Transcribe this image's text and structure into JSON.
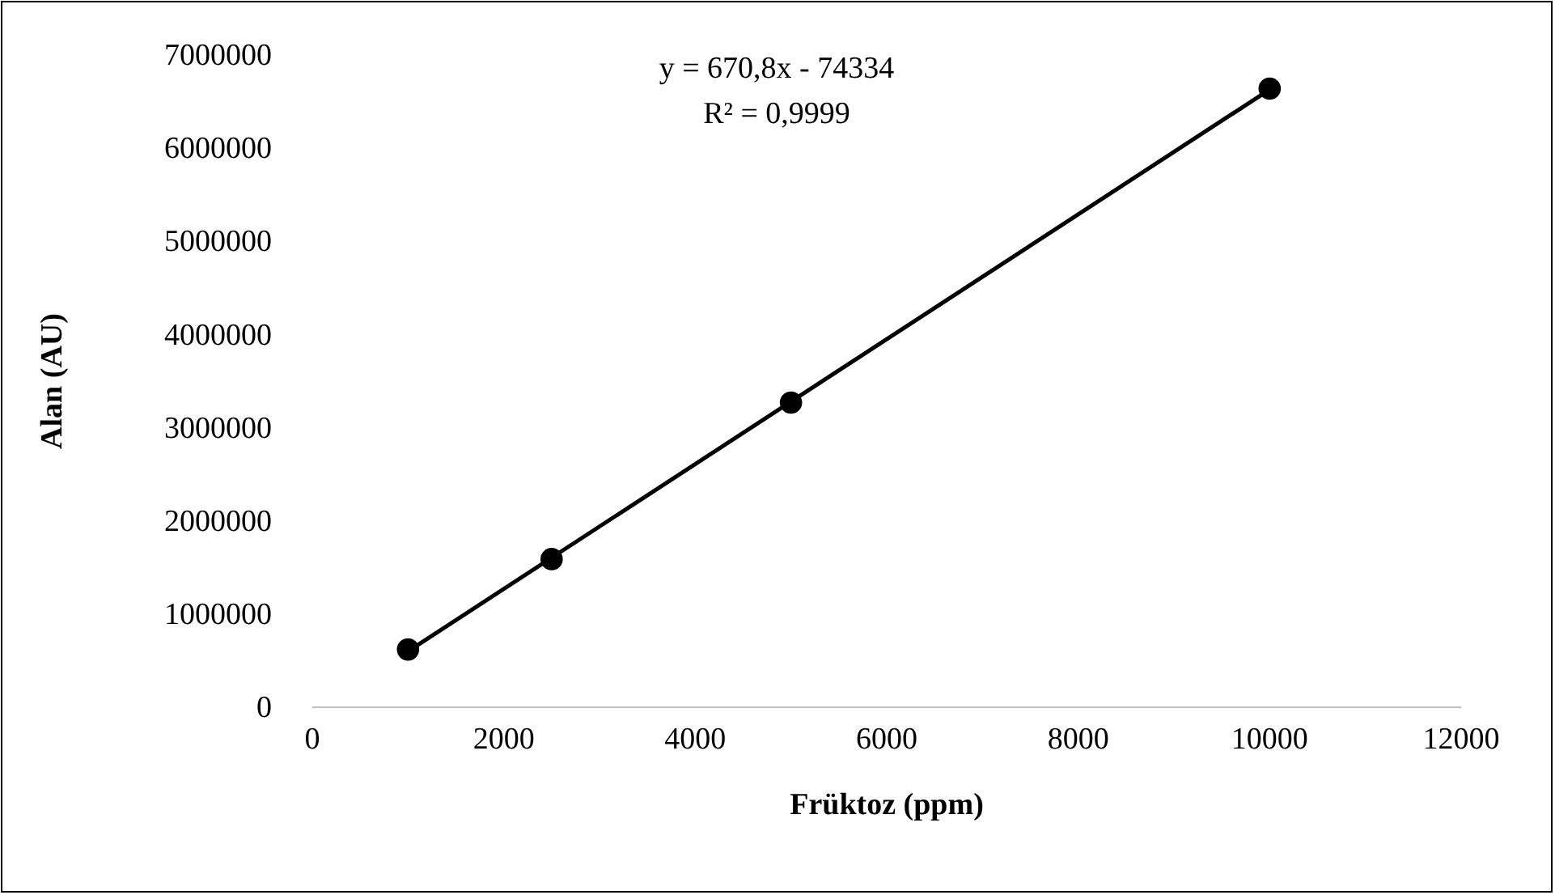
{
  "chart_data": {
    "type": "scatter",
    "xlabel": "Früktoz (ppm)",
    "ylabel": "Alan (AU)",
    "xlim": [
      0,
      12000
    ],
    "xticks": [
      0,
      2000,
      4000,
      6000,
      8000,
      10000,
      12000
    ],
    "ylim": [
      0,
      7000000
    ],
    "yticks": [
      0,
      1000000,
      2000000,
      3000000,
      4000000,
      5000000,
      6000000,
      7000000
    ],
    "grid": false,
    "series": [
      {
        "color": "#000000",
        "marker": "circle",
        "x": [
          1000,
          2500,
          5000,
          10000
        ],
        "values": [
          620000,
          1590000,
          3270000,
          6640000
        ]
      },
      {
        "type": "line",
        "color": "#000000",
        "line_style": "solid",
        "marker": "none",
        "x": [
          1000,
          10000
        ],
        "values": [
          600000,
          6630000
        ]
      }
    ],
    "annotations": [
      "y = 670,8x - 74334",
      "R² = 0,9999"
    ]
  }
}
